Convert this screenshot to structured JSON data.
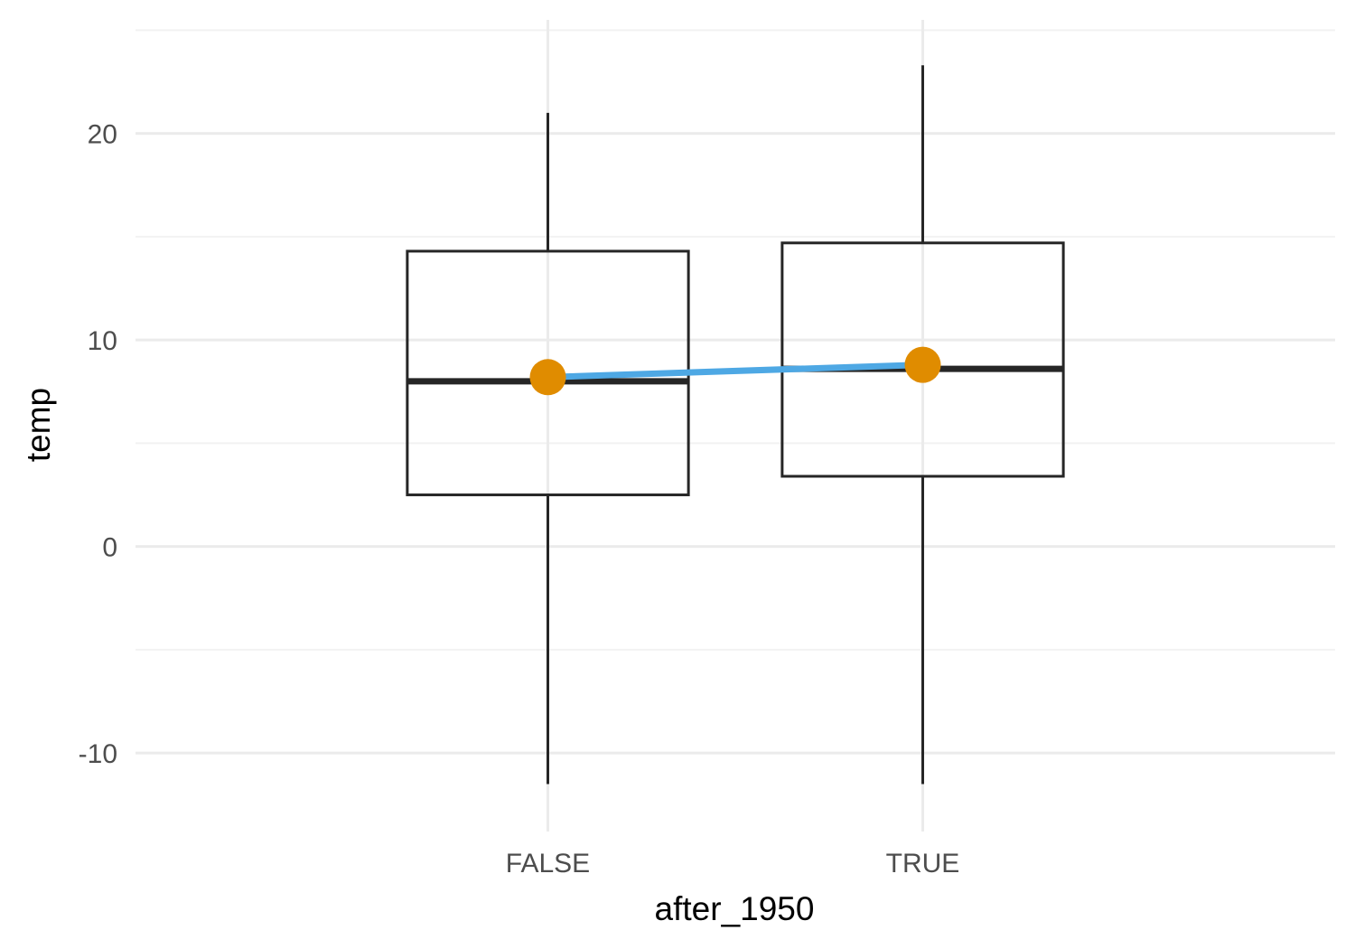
{
  "chart_data": {
    "type": "box",
    "xlabel": "after_1950",
    "ylabel": "temp",
    "categories": [
      "FALSE",
      "TRUE"
    ],
    "ylim": [
      -13.8,
      25.5
    ],
    "y_ticks": [
      -10,
      0,
      10,
      20
    ],
    "y_tick_labels": [
      "-10",
      "0",
      "10",
      "20"
    ],
    "grid": true,
    "legend": "none",
    "boxes": [
      {
        "category": "FALSE",
        "min": -11.5,
        "q1": 2.5,
        "median": 8.0,
        "q3": 14.3,
        "max": 21.0
      },
      {
        "category": "TRUE",
        "min": -11.5,
        "q1": 3.4,
        "median": 8.6,
        "q3": 14.7,
        "max": 23.3
      }
    ],
    "mean_series": {
      "values": [
        8.2,
        8.8
      ],
      "line_color": "#4ea8e4",
      "point_color": "#e08c00"
    },
    "colors": {
      "box_stroke": "#262626",
      "box_fill": "#ffffff"
    }
  }
}
